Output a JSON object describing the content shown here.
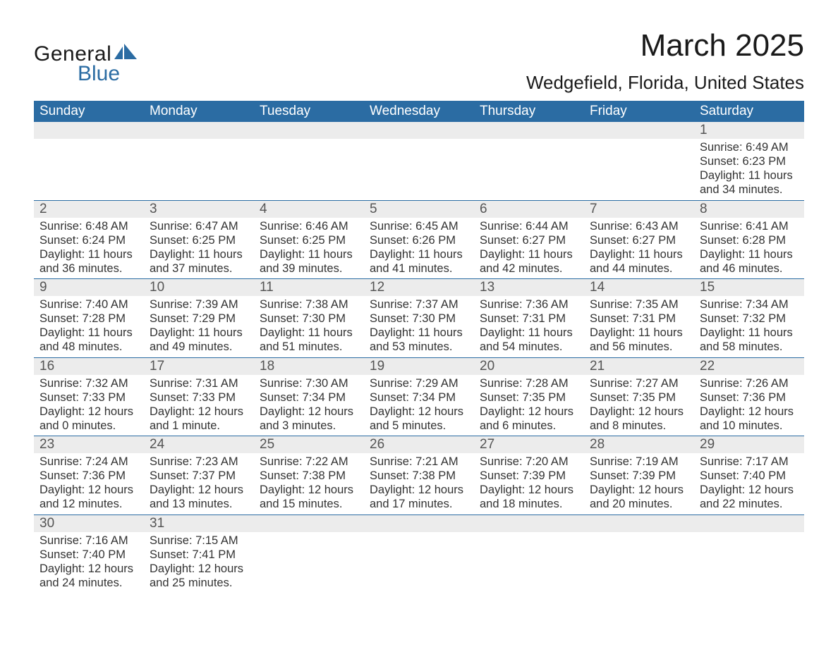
{
  "brand": {
    "text1": "General",
    "text2": "Blue",
    "shape_color": "#2b6ca3",
    "text1_color": "#1a1a1a",
    "text2_color": "#2b6ca3"
  },
  "header": {
    "month_title": "March 2025",
    "location": "Wedgefield, Florida, United States"
  },
  "colors": {
    "header_bg": "#2b6ca3",
    "header_text": "#ffffff",
    "daynum_bg": "#ececec",
    "daynum_text": "#555555",
    "body_text": "#333333",
    "row_divider": "#2b6ca3",
    "page_bg": "#ffffff"
  },
  "days_of_week": [
    "Sunday",
    "Monday",
    "Tuesday",
    "Wednesday",
    "Thursday",
    "Friday",
    "Saturday"
  ],
  "weeks": [
    [
      null,
      null,
      null,
      null,
      null,
      null,
      {
        "n": "1",
        "sunrise": "6:49 AM",
        "sunset": "6:23 PM",
        "dl1": "11 hours",
        "dl2": "and 34 minutes."
      }
    ],
    [
      {
        "n": "2",
        "sunrise": "6:48 AM",
        "sunset": "6:24 PM",
        "dl1": "11 hours",
        "dl2": "and 36 minutes."
      },
      {
        "n": "3",
        "sunrise": "6:47 AM",
        "sunset": "6:25 PM",
        "dl1": "11 hours",
        "dl2": "and 37 minutes."
      },
      {
        "n": "4",
        "sunrise": "6:46 AM",
        "sunset": "6:25 PM",
        "dl1": "11 hours",
        "dl2": "and 39 minutes."
      },
      {
        "n": "5",
        "sunrise": "6:45 AM",
        "sunset": "6:26 PM",
        "dl1": "11 hours",
        "dl2": "and 41 minutes."
      },
      {
        "n": "6",
        "sunrise": "6:44 AM",
        "sunset": "6:27 PM",
        "dl1": "11 hours",
        "dl2": "and 42 minutes."
      },
      {
        "n": "7",
        "sunrise": "6:43 AM",
        "sunset": "6:27 PM",
        "dl1": "11 hours",
        "dl2": "and 44 minutes."
      },
      {
        "n": "8",
        "sunrise": "6:41 AM",
        "sunset": "6:28 PM",
        "dl1": "11 hours",
        "dl2": "and 46 minutes."
      }
    ],
    [
      {
        "n": "9",
        "sunrise": "7:40 AM",
        "sunset": "7:28 PM",
        "dl1": "11 hours",
        "dl2": "and 48 minutes."
      },
      {
        "n": "10",
        "sunrise": "7:39 AM",
        "sunset": "7:29 PM",
        "dl1": "11 hours",
        "dl2": "and 49 minutes."
      },
      {
        "n": "11",
        "sunrise": "7:38 AM",
        "sunset": "7:30 PM",
        "dl1": "11 hours",
        "dl2": "and 51 minutes."
      },
      {
        "n": "12",
        "sunrise": "7:37 AM",
        "sunset": "7:30 PM",
        "dl1": "11 hours",
        "dl2": "and 53 minutes."
      },
      {
        "n": "13",
        "sunrise": "7:36 AM",
        "sunset": "7:31 PM",
        "dl1": "11 hours",
        "dl2": "and 54 minutes."
      },
      {
        "n": "14",
        "sunrise": "7:35 AM",
        "sunset": "7:31 PM",
        "dl1": "11 hours",
        "dl2": "and 56 minutes."
      },
      {
        "n": "15",
        "sunrise": "7:34 AM",
        "sunset": "7:32 PM",
        "dl1": "11 hours",
        "dl2": "and 58 minutes."
      }
    ],
    [
      {
        "n": "16",
        "sunrise": "7:32 AM",
        "sunset": "7:33 PM",
        "dl1": "12 hours",
        "dl2": "and 0 minutes."
      },
      {
        "n": "17",
        "sunrise": "7:31 AM",
        "sunset": "7:33 PM",
        "dl1": "12 hours",
        "dl2": "and 1 minute."
      },
      {
        "n": "18",
        "sunrise": "7:30 AM",
        "sunset": "7:34 PM",
        "dl1": "12 hours",
        "dl2": "and 3 minutes."
      },
      {
        "n": "19",
        "sunrise": "7:29 AM",
        "sunset": "7:34 PM",
        "dl1": "12 hours",
        "dl2": "and 5 minutes."
      },
      {
        "n": "20",
        "sunrise": "7:28 AM",
        "sunset": "7:35 PM",
        "dl1": "12 hours",
        "dl2": "and 6 minutes."
      },
      {
        "n": "21",
        "sunrise": "7:27 AM",
        "sunset": "7:35 PM",
        "dl1": "12 hours",
        "dl2": "and 8 minutes."
      },
      {
        "n": "22",
        "sunrise": "7:26 AM",
        "sunset": "7:36 PM",
        "dl1": "12 hours",
        "dl2": "and 10 minutes."
      }
    ],
    [
      {
        "n": "23",
        "sunrise": "7:24 AM",
        "sunset": "7:36 PM",
        "dl1": "12 hours",
        "dl2": "and 12 minutes."
      },
      {
        "n": "24",
        "sunrise": "7:23 AM",
        "sunset": "7:37 PM",
        "dl1": "12 hours",
        "dl2": "and 13 minutes."
      },
      {
        "n": "25",
        "sunrise": "7:22 AM",
        "sunset": "7:38 PM",
        "dl1": "12 hours",
        "dl2": "and 15 minutes."
      },
      {
        "n": "26",
        "sunrise": "7:21 AM",
        "sunset": "7:38 PM",
        "dl1": "12 hours",
        "dl2": "and 17 minutes."
      },
      {
        "n": "27",
        "sunrise": "7:20 AM",
        "sunset": "7:39 PM",
        "dl1": "12 hours",
        "dl2": "and 18 minutes."
      },
      {
        "n": "28",
        "sunrise": "7:19 AM",
        "sunset": "7:39 PM",
        "dl1": "12 hours",
        "dl2": "and 20 minutes."
      },
      {
        "n": "29",
        "sunrise": "7:17 AM",
        "sunset": "7:40 PM",
        "dl1": "12 hours",
        "dl2": "and 22 minutes."
      }
    ],
    [
      {
        "n": "30",
        "sunrise": "7:16 AM",
        "sunset": "7:40 PM",
        "dl1": "12 hours",
        "dl2": "and 24 minutes."
      },
      {
        "n": "31",
        "sunrise": "7:15 AM",
        "sunset": "7:41 PM",
        "dl1": "12 hours",
        "dl2": "and 25 minutes."
      },
      null,
      null,
      null,
      null,
      null
    ]
  ],
  "labels": {
    "sunrise_prefix": "Sunrise: ",
    "sunset_prefix": "Sunset: ",
    "daylight_prefix": "Daylight: "
  }
}
